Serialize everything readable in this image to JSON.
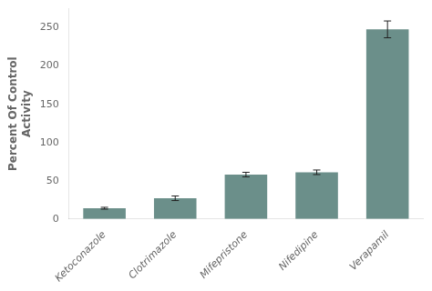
{
  "chart_data": {
    "type": "bar",
    "categories": [
      "Ketoconazole",
      "Clotrimazole",
      "Mifepristone",
      "Nifedipine",
      "Verapamil"
    ],
    "values": [
      14,
      27,
      58,
      61,
      248
    ],
    "errors": [
      1.2,
      3.0,
      3.0,
      3.0,
      11
    ],
    "color": "#6b8f8a",
    "ylabel": "Percent Of Control\nActivity",
    "ylim": [
      0,
      275
    ],
    "yticks": [
      0,
      50,
      100,
      150,
      200,
      250
    ],
    "grid": false
  }
}
